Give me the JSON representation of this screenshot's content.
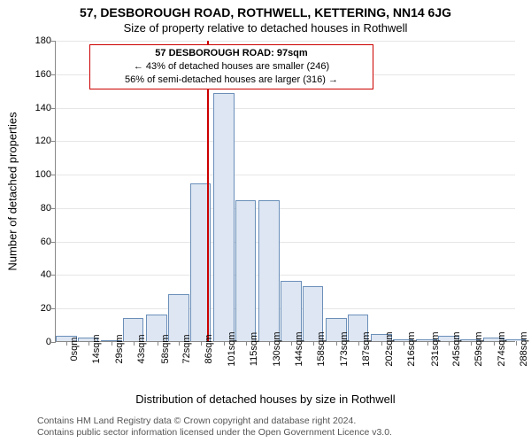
{
  "title_line1": "57, DESBOROUGH ROAD, ROTHWELL, KETTERING, NN14 6JG",
  "title_line2": "Size of property relative to detached houses in Rothwell",
  "y_axis_title": "Number of detached properties",
  "x_axis_title": "Distribution of detached houses by size in Rothwell",
  "info_box": {
    "line1_label": "57 DESBOROUGH ROAD:",
    "line1_value": "97sqm",
    "line2": "← 43% of detached houses are smaller (246)",
    "line3": "56% of semi-detached houses are larger (316) →"
  },
  "footer": {
    "line1": "Contains HM Land Registry data © Crown copyright and database right 2024.",
    "line2": "Contains public sector information licensed under the Open Government Licence v3.0."
  },
  "chart": {
    "type": "bar",
    "ylim": [
      0,
      180
    ],
    "ytick_step": 20,
    "xtick_labels": [
      "0sqm",
      "14sqm",
      "29sqm",
      "43sqm",
      "58sqm",
      "72sqm",
      "86sqm",
      "101sqm",
      "115sqm",
      "130sqm",
      "144sqm",
      "158sqm",
      "173sqm",
      "187sqm",
      "202sqm",
      "216sqm",
      "231sqm",
      "245sqm",
      "259sqm",
      "274sqm",
      "288sqm"
    ],
    "categories": [
      0,
      14,
      29,
      43,
      58,
      72,
      86,
      101,
      115,
      130,
      144,
      158,
      173,
      187,
      202,
      216,
      231,
      245,
      259,
      274,
      288
    ],
    "values": [
      3,
      2,
      0,
      14,
      16,
      28,
      94,
      148,
      84,
      84,
      36,
      33,
      14,
      16,
      4,
      1,
      1,
      3,
      1,
      2,
      1
    ],
    "x_suffix": "sqm",
    "bar_fill": "#dde6f2",
    "bar_border": "#6b8fb9",
    "reference_x": 97,
    "reference_color": "#cc0000",
    "background_color": "#ffffff",
    "grid_color": "#e6e6e6",
    "axis_color": "#888888",
    "label_fontsize": 11,
    "title_fontsize": 14,
    "bar_width_ratio": 1.0,
    "x_domain": [
      0,
      295
    ]
  }
}
